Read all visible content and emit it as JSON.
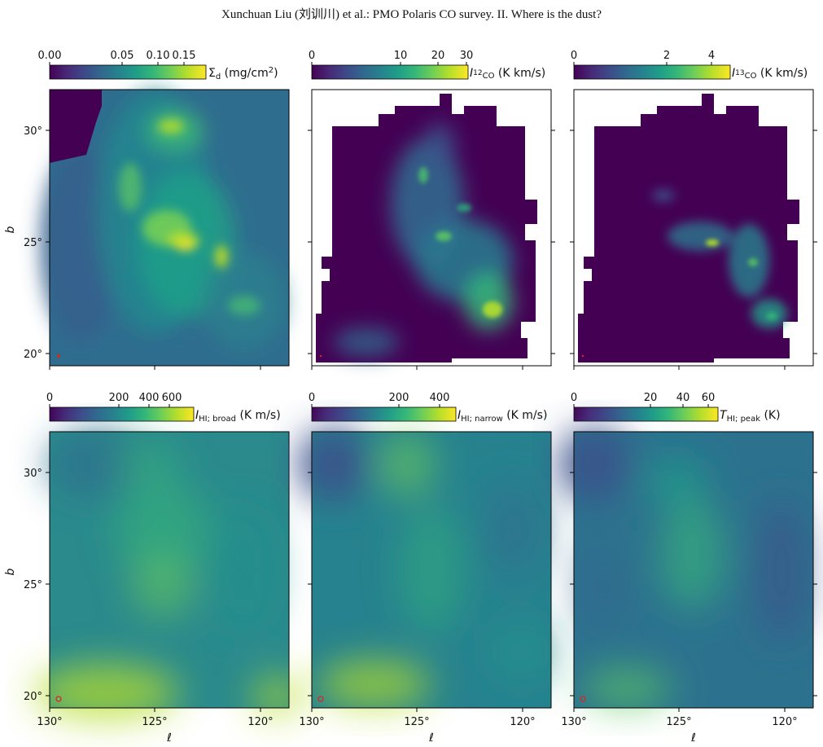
{
  "running_head": "Xunchuan Liu (刘训川) et al.: PMO Polaris CO survey. II. Where is the dust?",
  "colors": {
    "viridis": [
      "#440154",
      "#482878",
      "#3e4989",
      "#31688e",
      "#26828e",
      "#1f9e89",
      "#35b779",
      "#6ece58",
      "#b5de2b",
      "#fde725"
    ],
    "marker": "#d62728"
  },
  "axes": {
    "x_label": "ℓ",
    "y_label": "b",
    "x_ticks": [
      "130°",
      "125°",
      "120°"
    ],
    "y_ticks": [
      "30°",
      "25°",
      "20°"
    ]
  },
  "panels": [
    {
      "id": "dust",
      "colorbar_ticks": [
        "0.00",
        "0.05",
        "0.10",
        "0.15"
      ],
      "colorbar_label": "Σ_d (mg/cm²)"
    },
    {
      "id": "co12",
      "colorbar_ticks": [
        "0",
        "10",
        "20",
        "30"
      ],
      "colorbar_label": "I_12CO (K km/s)"
    },
    {
      "id": "co13",
      "colorbar_ticks": [
        "0",
        "2",
        "4"
      ],
      "colorbar_label": "I_13CO (K km/s)"
    },
    {
      "id": "hi_broad",
      "colorbar_ticks": [
        "0",
        "200",
        "400",
        "600"
      ],
      "colorbar_label": "I_HI; broad (K m/s)"
    },
    {
      "id": "hi_narrow",
      "colorbar_ticks": [
        "0",
        "200",
        "400"
      ],
      "colorbar_label": "I_HI; narrow (K m/s)"
    },
    {
      "id": "hi_peak",
      "colorbar_ticks": [
        "0",
        "20",
        "40",
        "60"
      ],
      "colorbar_label": "T_HI; peak (K)"
    }
  ]
}
